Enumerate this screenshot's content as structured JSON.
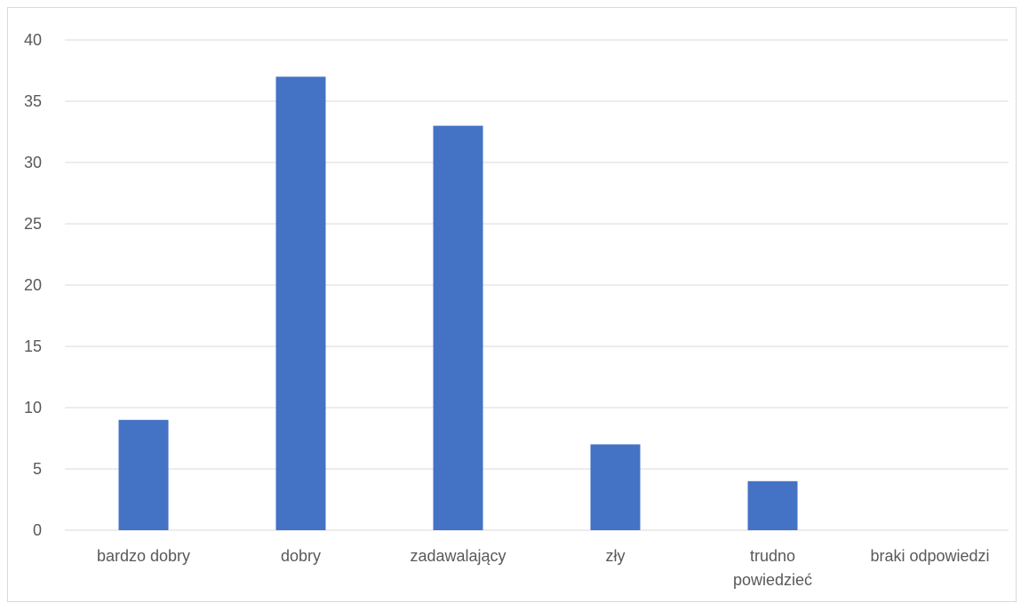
{
  "chart_data": {
    "type": "bar",
    "categories": [
      [
        "bardzo dobry"
      ],
      [
        "dobry"
      ],
      [
        "zadawalający"
      ],
      [
        "zły"
      ],
      [
        "trudno",
        "powiedzieć"
      ],
      [
        "braki odpowiedzi"
      ]
    ],
    "values": [
      9,
      37,
      33,
      7,
      4,
      0
    ],
    "ylim": [
      0,
      40
    ],
    "yticks": [
      0,
      5,
      10,
      15,
      20,
      25,
      30,
      35,
      40
    ],
    "grid": true,
    "legend": "none",
    "bar_color": "#4472C4",
    "grid_color": "#D9D9D9",
    "label_color": "#595959"
  }
}
